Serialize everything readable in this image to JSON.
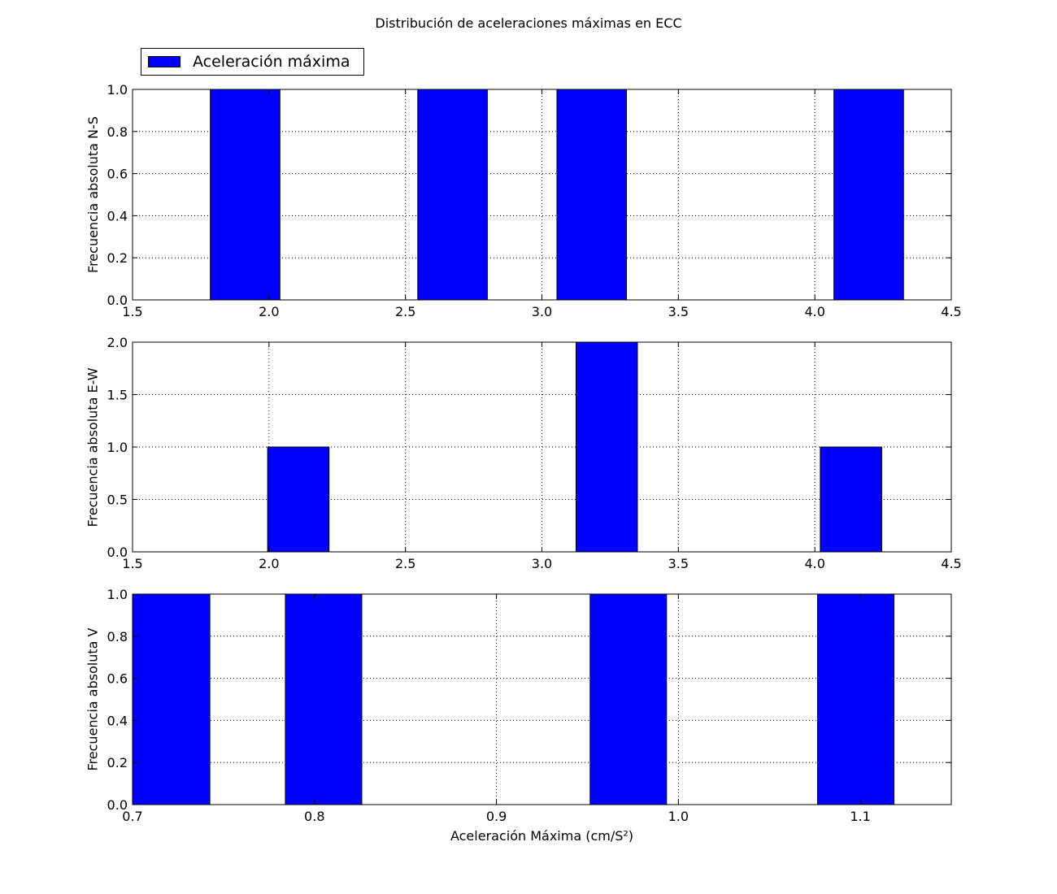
{
  "chart_data": [
    {
      "type": "bar",
      "title": "Distribución de aceleraciones máximas en ECC",
      "legend": {
        "label": "Aceleración máxima",
        "placement": "top-left, above first panel",
        "color": "#0000ff"
      },
      "xlabel": "",
      "ylabel": "Frecuencia absoluta N-S",
      "xlim": [
        1.5,
        4.5
      ],
      "ylim": [
        0,
        1.0
      ],
      "xticks": [
        "1.5",
        "2.0",
        "2.5",
        "3.0",
        "3.5",
        "4.0",
        "4.5"
      ],
      "yticks": [
        "0.0",
        "0.2",
        "0.4",
        "0.6",
        "0.8",
        "1.0"
      ],
      "grid": true,
      "bars": [
        {
          "x0": 1.785,
          "x1": 2.04,
          "value": 1
        },
        {
          "x0": 2.545,
          "x1": 2.8,
          "value": 1
        },
        {
          "x0": 3.055,
          "x1": 3.31,
          "value": 1
        },
        {
          "x0": 4.07,
          "x1": 4.325,
          "value": 1
        }
      ]
    },
    {
      "type": "bar",
      "xlabel": "",
      "ylabel": "Frecuencia absoluta E-W",
      "xlim": [
        1.5,
        4.5
      ],
      "ylim": [
        0,
        2.0
      ],
      "xticks": [
        "1.5",
        "2.0",
        "2.5",
        "3.0",
        "3.5",
        "4.0",
        "4.5"
      ],
      "yticks": [
        "0.0",
        "0.5",
        "1.0",
        "1.5",
        "2.0"
      ],
      "grid": true,
      "bars": [
        {
          "x0": 1.995,
          "x1": 2.22,
          "value": 1
        },
        {
          "x0": 3.125,
          "x1": 3.35,
          "value": 2
        },
        {
          "x0": 4.02,
          "x1": 4.245,
          "value": 1
        }
      ]
    },
    {
      "type": "bar",
      "xlabel": "Aceleración Máxima (cm/S²)",
      "ylabel": "Frecuencia absoluta V",
      "xlim": [
        0.7,
        1.15
      ],
      "ylim": [
        0,
        1.0
      ],
      "xticks": [
        "0.7",
        "0.8",
        "0.9",
        "1.0",
        "1.1"
      ],
      "yticks": [
        "0.0",
        "0.2",
        "0.4",
        "0.6",
        "0.8",
        "1.0"
      ],
      "grid": true,
      "bars": [
        {
          "x0": 0.7,
          "x1": 0.7425,
          "value": 1
        },
        {
          "x0": 0.784,
          "x1": 0.826,
          "value": 1
        },
        {
          "x0": 0.9515,
          "x1": 0.9935,
          "value": 1
        },
        {
          "x0": 1.0765,
          "x1": 1.1185,
          "value": 1
        }
      ]
    }
  ]
}
